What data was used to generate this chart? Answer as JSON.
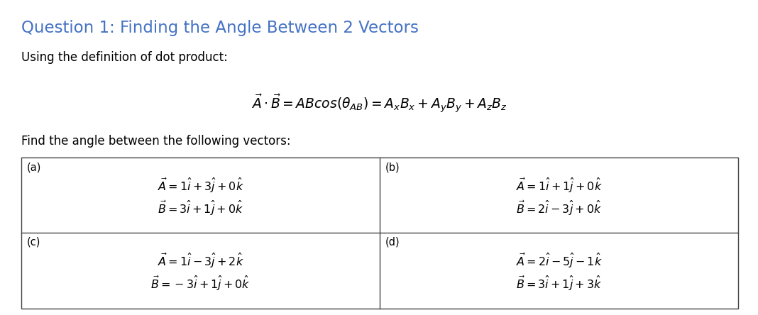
{
  "title": "Question 1: Finding the Angle Between 2 Vectors",
  "title_color": "#4472C4",
  "subtitle": "Using the definition of dot product:",
  "formula": "$\\vec{A} \\cdot \\vec{B} = ABcos(\\theta_{AB}) = A_xB_x + A_yB_y + A_zB_z$",
  "find_text": "Find the angle between the following vectors:",
  "cells": {
    "a_label": "(a)",
    "b_label": "(b)",
    "c_label": "(c)",
    "d_label": "(d)",
    "a_A": "$\\vec{A} = 1\\hat{i} + 3\\hat{j} + 0\\hat{k}$",
    "a_B": "$\\vec{B} = 3\\hat{i} + 1\\hat{j} + 0\\hat{k}$",
    "b_A": "$\\vec{A} = 1\\hat{i} + 1\\hat{j} + 0\\hat{k}$",
    "b_B": "$\\vec{B} = 2\\hat{i} - 3\\hat{j} + 0\\hat{k}$",
    "c_A": "$\\vec{A} = 1\\hat{i} - 3\\hat{j} + 2\\hat{k}$",
    "c_B": "$\\vec{B} = -3\\hat{i} + 1\\hat{j} + 0\\hat{k}$",
    "d_A": "$\\vec{A} = 2\\hat{i} - 5\\hat{j} - 1\\hat{k}$",
    "d_B": "$\\vec{B} = 3\\hat{i} + 1\\hat{j} + 3\\hat{k}$"
  },
  "bg_color": "#ffffff",
  "text_color": "#000000",
  "table_border_color": "#444444",
  "fig_width": 10.68,
  "fig_height": 4.44,
  "dpi": 100
}
